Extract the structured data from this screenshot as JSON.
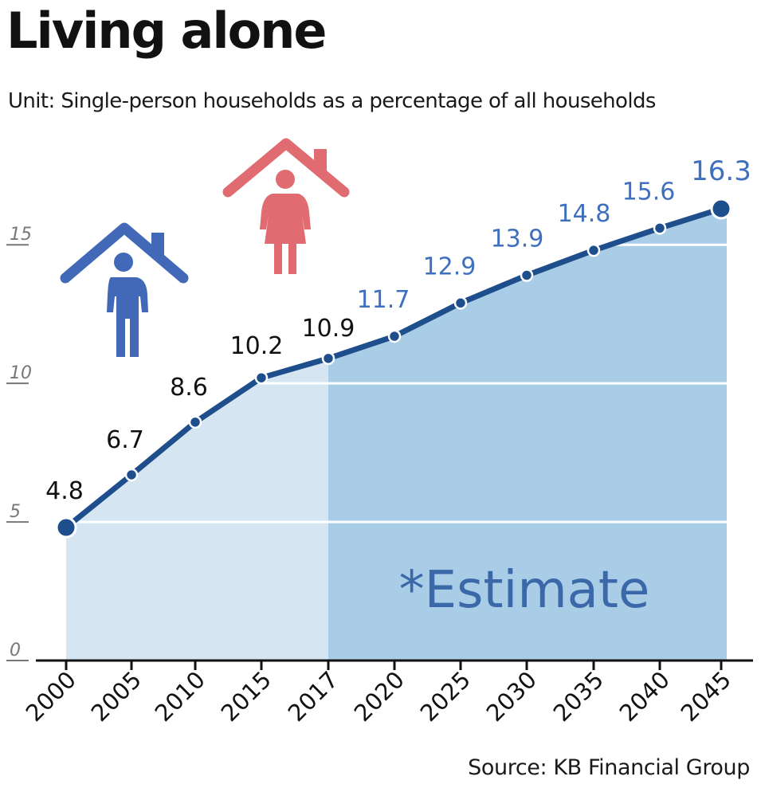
{
  "title": "Living alone",
  "subtitle": "Unit: Single-person households as a percentage of all households",
  "source": "Source: KB Financial Group",
  "chart_data": {
    "type": "area",
    "title": "Living alone",
    "ylabel": "Single-person households as a percentage of all households",
    "categories": [
      "2000",
      "2005",
      "2010",
      "2015",
      "2017",
      "2020",
      "2025",
      "2030",
      "2035",
      "2040",
      "2045"
    ],
    "values": [
      4.8,
      6.7,
      8.6,
      10.2,
      10.9,
      11.7,
      12.9,
      13.9,
      14.8,
      15.6,
      16.3
    ],
    "value_labels": [
      "4.8",
      "6.7",
      "8.6",
      "10.2",
      "10.9",
      "11.7",
      "12.9",
      "13.9",
      "14.8",
      "15.6",
      "16.3"
    ],
    "estimate_from_index": 4,
    "estimate_label": "*Estimate",
    "ylim": [
      0,
      16.3
    ],
    "yticks": [
      "0",
      "5",
      "10",
      "15"
    ],
    "grid": true,
    "colors": {
      "line": "#1f4e8c",
      "actual_fill": "#d5e6f2",
      "estimate_fill": "#a9cde6",
      "actual_label": "#111111",
      "estimate_label": "#3f6fbf",
      "estimate_text": "#3a68a8",
      "male_icon": "#4169b8",
      "female_icon": "#e06c72"
    }
  }
}
